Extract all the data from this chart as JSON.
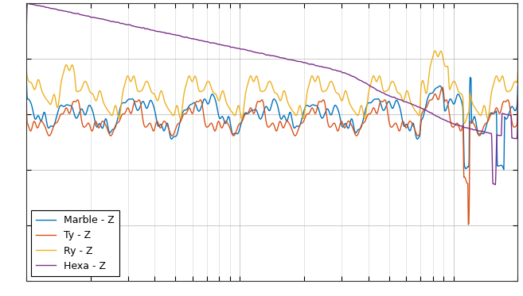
{
  "colors": {
    "marble_z": "#0072BD",
    "ty_z": "#D95319",
    "ry_z": "#EDB120",
    "hexa_z": "#7E2F8E"
  },
  "legend_labels": [
    "Marble - Z",
    "Ty - Z",
    "Ry - Z",
    "Hexa - Z"
  ],
  "bg_color": "#ffffff",
  "grid_color": "#b0b0b0",
  "xlim": [
    1,
    200
  ],
  "ylim": [
    -80,
    20
  ],
  "seed": 42,
  "n_points": 2000
}
